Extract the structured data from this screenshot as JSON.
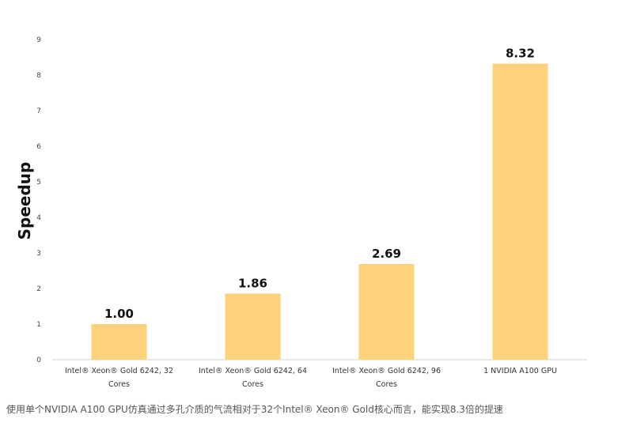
{
  "chart_data": {
    "type": "bar",
    "categories": [
      [
        "Intel® Xeon® Gold 6242, 32",
        "Cores"
      ],
      [
        "Intel® Xeon® Gold 6242, 64",
        "Cores"
      ],
      [
        "Intel® Xeon® Gold 6242, 96",
        "Cores"
      ],
      [
        "1 NVIDIA A100 GPU"
      ]
    ],
    "values": [
      1.0,
      1.86,
      2.69,
      8.32
    ],
    "value_labels": [
      "1.00",
      "1.86",
      "2.69",
      "8.32"
    ],
    "ylabel": "Speedup",
    "ylim": [
      0,
      9
    ],
    "yticks": [
      0,
      1,
      2,
      3,
      4,
      5,
      6,
      7,
      8,
      9
    ],
    "grid": false,
    "legend": "none",
    "bar_color": "#FDD27B",
    "axis_color": "#D9D9D9"
  },
  "caption": "使用单个NVIDIA A100 GPU仿真通过多孔介质的气流相对于32个Intel® Xeon® Gold核心而言，能实现8.3倍的提速"
}
